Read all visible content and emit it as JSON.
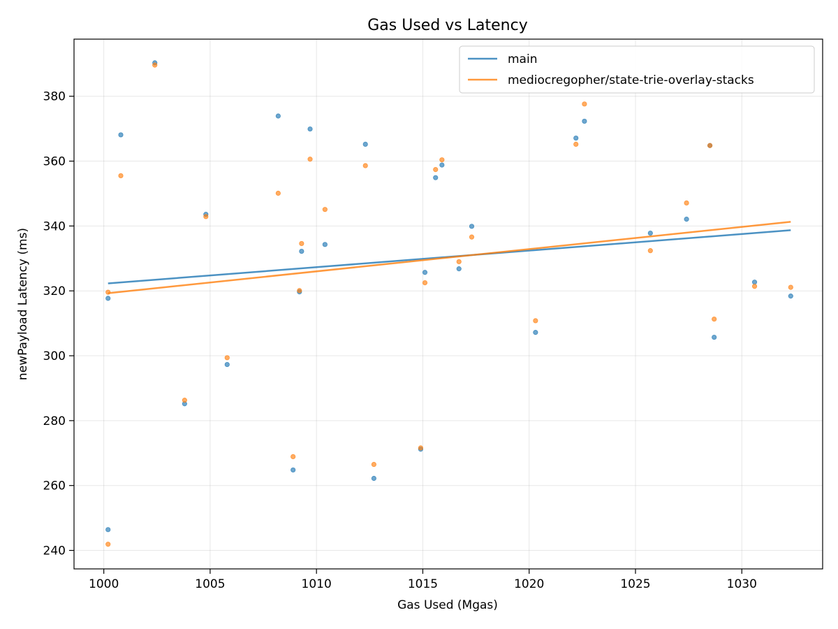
{
  "chart_data": {
    "type": "scatter",
    "title": "Gas Used vs Latency",
    "xlabel": "Gas Used (Mgas)",
    "ylabel": "newPayload Latency (ms)",
    "xlim": [
      998.6,
      1033.8
    ],
    "ylim": [
      234.3,
      397.6
    ],
    "xticks": [
      1000,
      1005,
      1010,
      1015,
      1020,
      1025,
      1030
    ],
    "yticks": [
      240,
      260,
      280,
      300,
      320,
      340,
      360,
      380
    ],
    "grid": true,
    "legend_position": "top-right",
    "series": [
      {
        "name": "main",
        "color": "#1f77b4",
        "points": [
          [
            1000.2,
            246.4
          ],
          [
            1000.2,
            317.7
          ],
          [
            1000.8,
            368.1
          ],
          [
            1002.4,
            390.3
          ],
          [
            1003.8,
            285.2
          ],
          [
            1004.8,
            343.6
          ],
          [
            1005.8,
            297.3
          ],
          [
            1008.2,
            373.9
          ],
          [
            1008.9,
            264.8
          ],
          [
            1009.2,
            319.7
          ],
          [
            1009.3,
            332.2
          ],
          [
            1009.7,
            369.9
          ],
          [
            1010.4,
            334.3
          ],
          [
            1012.3,
            365.2
          ],
          [
            1012.7,
            262.2
          ],
          [
            1014.9,
            271.2
          ],
          [
            1015.1,
            325.7
          ],
          [
            1015.6,
            354.9
          ],
          [
            1015.9,
            358.8
          ],
          [
            1016.7,
            326.8
          ],
          [
            1017.3,
            339.9
          ],
          [
            1020.3,
            307.2
          ],
          [
            1022.2,
            367.1
          ],
          [
            1022.6,
            372.3
          ],
          [
            1025.7,
            337.8
          ],
          [
            1027.4,
            342.1
          ],
          [
            1028.5,
            364.8
          ],
          [
            1028.7,
            305.7
          ],
          [
            1030.6,
            322.7
          ],
          [
            1032.3,
            318.4
          ]
        ],
        "trend": [
          [
            1000.2,
            322.3
          ],
          [
            1032.3,
            338.7
          ]
        ]
      },
      {
        "name": "mediocregopher/state-trie-overlay-stacks",
        "color": "#ff7f0e",
        "points": [
          [
            1000.2,
            241.9
          ],
          [
            1000.2,
            319.6
          ],
          [
            1000.8,
            355.5
          ],
          [
            1002.4,
            389.6
          ],
          [
            1003.8,
            286.3
          ],
          [
            1004.8,
            342.9
          ],
          [
            1005.8,
            299.4
          ],
          [
            1008.2,
            350.1
          ],
          [
            1008.9,
            268.9
          ],
          [
            1009.2,
            320.1
          ],
          [
            1009.3,
            334.6
          ],
          [
            1009.7,
            360.6
          ],
          [
            1010.4,
            345.1
          ],
          [
            1012.3,
            358.6
          ],
          [
            1012.7,
            266.5
          ],
          [
            1014.9,
            271.6
          ],
          [
            1015.1,
            322.5
          ],
          [
            1015.6,
            357.4
          ],
          [
            1015.9,
            360.4
          ],
          [
            1016.7,
            329.0
          ],
          [
            1017.3,
            336.6
          ],
          [
            1020.3,
            310.8
          ],
          [
            1022.2,
            365.2
          ],
          [
            1022.6,
            377.6
          ],
          [
            1025.7,
            332.4
          ],
          [
            1027.4,
            347.1
          ],
          [
            1028.5,
            364.8
          ],
          [
            1028.7,
            311.3
          ],
          [
            1030.6,
            321.4
          ],
          [
            1032.3,
            321.1
          ]
        ],
        "trend": [
          [
            1000.2,
            319.3
          ],
          [
            1032.3,
            341.3
          ]
        ]
      }
    ]
  }
}
